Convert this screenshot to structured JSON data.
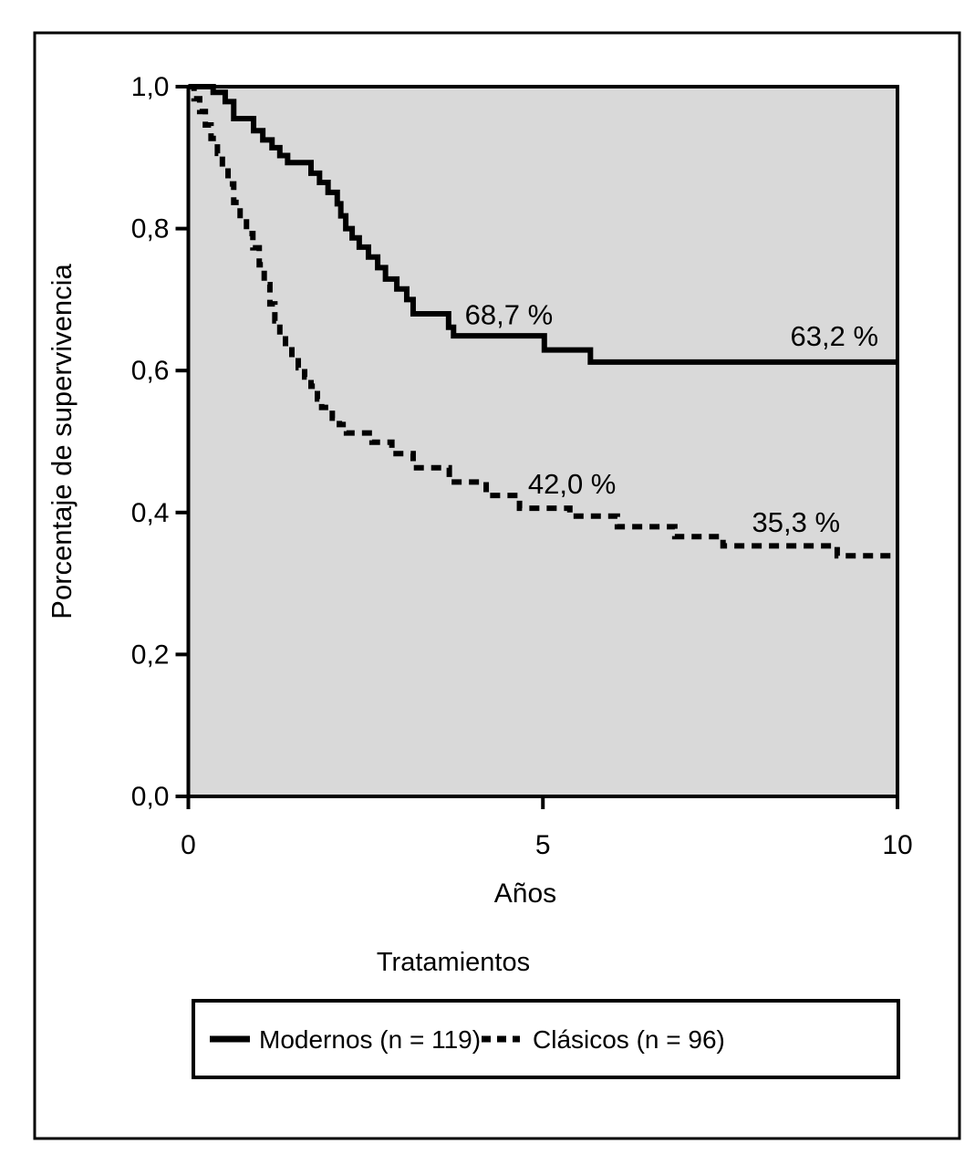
{
  "chart_data": {
    "type": "line",
    "subtype": "kaplan-meier-step-survival",
    "title": "",
    "xlabel": "Años",
    "ylabel": "Porcentaje de supervivencia",
    "xlim": [
      0,
      10
    ],
    "ylim": [
      0.0,
      1.0
    ],
    "grid": false,
    "plot_background": "#d9d9d9",
    "line_color": "#000000",
    "x_ticks": [
      {
        "value": 0,
        "label": "0"
      },
      {
        "value": 5,
        "label": "5"
      },
      {
        "value": 10,
        "label": "10"
      }
    ],
    "y_ticks": [
      {
        "value": 1.0,
        "label": "1,0"
      },
      {
        "value": 0.8,
        "label": "0,8"
      },
      {
        "value": 0.6,
        "label": "0,6"
      },
      {
        "value": 0.4,
        "label": "0,4"
      },
      {
        "value": 0.2,
        "label": "0,2"
      },
      {
        "value": 0.0,
        "label": "0,0"
      }
    ],
    "legend": {
      "title": "Tratamientos",
      "position": "bottom"
    },
    "series": [
      {
        "name": "Modernos (n = 119)",
        "style": "solid",
        "color": "#000000",
        "points": [
          [
            0.0,
            1.0
          ],
          [
            0.35,
            0.992
          ],
          [
            0.52,
            0.979
          ],
          [
            0.64,
            0.955
          ],
          [
            0.92,
            0.938
          ],
          [
            1.05,
            0.925
          ],
          [
            1.18,
            0.914
          ],
          [
            1.29,
            0.903
          ],
          [
            1.4,
            0.893
          ],
          [
            1.73,
            0.878
          ],
          [
            1.85,
            0.865
          ],
          [
            1.97,
            0.851
          ],
          [
            2.1,
            0.835
          ],
          [
            2.15,
            0.818
          ],
          [
            2.22,
            0.8
          ],
          [
            2.31,
            0.787
          ],
          [
            2.41,
            0.774
          ],
          [
            2.54,
            0.76
          ],
          [
            2.67,
            0.745
          ],
          [
            2.78,
            0.729
          ],
          [
            2.94,
            0.715
          ],
          [
            3.08,
            0.7
          ],
          [
            3.17,
            0.68
          ],
          [
            3.67,
            0.661
          ],
          [
            3.74,
            0.649
          ],
          [
            5.02,
            0.629
          ],
          [
            5.67,
            0.612
          ],
          [
            10.0,
            0.612
          ]
        ]
      },
      {
        "name": "Clásicos (n = 96)",
        "style": "dashed",
        "color": "#000000",
        "points": [
          [
            0.0,
            1.0
          ],
          [
            0.08,
            0.983
          ],
          [
            0.16,
            0.965
          ],
          [
            0.24,
            0.946
          ],
          [
            0.32,
            0.927
          ],
          [
            0.41,
            0.906
          ],
          [
            0.48,
            0.886
          ],
          [
            0.56,
            0.863
          ],
          [
            0.64,
            0.837
          ],
          [
            0.73,
            0.814
          ],
          [
            0.82,
            0.793
          ],
          [
            0.91,
            0.773
          ],
          [
            1.0,
            0.749
          ],
          [
            1.07,
            0.721
          ],
          [
            1.15,
            0.694
          ],
          [
            1.22,
            0.67
          ],
          [
            1.29,
            0.649
          ],
          [
            1.37,
            0.634
          ],
          [
            1.46,
            0.618
          ],
          [
            1.55,
            0.604
          ],
          [
            1.64,
            0.591
          ],
          [
            1.73,
            0.578
          ],
          [
            1.82,
            0.56
          ],
          [
            1.88,
            0.548
          ],
          [
            2.03,
            0.533
          ],
          [
            2.13,
            0.524
          ],
          [
            2.23,
            0.512
          ],
          [
            2.59,
            0.499
          ],
          [
            2.87,
            0.483
          ],
          [
            3.17,
            0.463
          ],
          [
            3.68,
            0.443
          ],
          [
            4.2,
            0.424
          ],
          [
            4.67,
            0.406
          ],
          [
            5.38,
            0.395
          ],
          [
            6.05,
            0.38
          ],
          [
            6.86,
            0.366
          ],
          [
            7.54,
            0.353
          ],
          [
            9.15,
            0.339
          ],
          [
            10.0,
            0.339
          ]
        ]
      }
    ],
    "annotations": [
      {
        "label": "68,7 %",
        "series": "Modernos (n = 119)",
        "x": 4.52,
        "y": 0.679
      },
      {
        "label": "63,2 %",
        "series": "Modernos (n = 119)",
        "x": 9.11,
        "y": 0.649
      },
      {
        "label": "42,0 %",
        "series": "Clásicos (n = 96)",
        "x": 5.41,
        "y": 0.441
      },
      {
        "label": "35,3 %",
        "series": "Clásicos (n = 96)",
        "x": 8.57,
        "y": 0.387
      }
    ]
  }
}
